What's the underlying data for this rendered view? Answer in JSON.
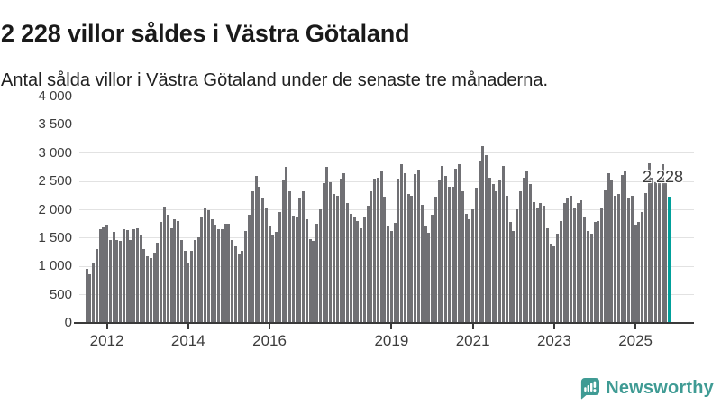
{
  "header": {
    "title": "2 228 villor såldes i Västra Götaland",
    "subtitle": "Antal sålda villor i Västra Götaland under de senaste tre månaderna."
  },
  "chart_data": {
    "type": "bar",
    "title": "2 228 villor såldes i Västra Götaland",
    "xlabel": "",
    "ylabel": "",
    "ylim": [
      0,
      4000
    ],
    "grid": "horizontal",
    "y_ticks": [
      0,
      500,
      1000,
      1500,
      2000,
      2500,
      3000,
      3500,
      4000
    ],
    "y_tick_labels": [
      "0",
      "500",
      "1 000",
      "1 500",
      "2 000",
      "2 500",
      "3 000",
      "3 500",
      "4 000"
    ],
    "x_tick_labels": [
      "2012",
      "2014",
      "2016",
      "2019",
      "2021",
      "2023",
      "2025"
    ],
    "x_tick_month_indices": [
      6,
      30,
      54,
      90,
      114,
      138,
      162
    ],
    "period_start": "2011-07",
    "period_end": "2025-11",
    "values": [
      950,
      860,
      1060,
      1310,
      1650,
      1690,
      1730,
      1460,
      1610,
      1460,
      1450,
      1650,
      1640,
      1470,
      1660,
      1670,
      1540,
      1310,
      1180,
      1150,
      1250,
      1420,
      1780,
      2050,
      1910,
      1670,
      1840,
      1800,
      1470,
      1270,
      1070,
      1280,
      1470,
      1520,
      1860,
      2040,
      1990,
      1830,
      1730,
      1650,
      1650,
      1750,
      1750,
      1470,
      1360,
      1230,
      1280,
      1620,
      1910,
      2330,
      2600,
      2410,
      2200,
      2040,
      1700,
      1560,
      1610,
      1960,
      2520,
      2760,
      2320,
      1890,
      1870,
      2200,
      2330,
      1840,
      1480,
      1450,
      1750,
      2010,
      2470,
      2760,
      2490,
      2280,
      2250,
      2550,
      2650,
      2120,
      1930,
      1860,
      1800,
      1670,
      1880,
      2070,
      2330,
      2550,
      2570,
      2690,
      2230,
      1720,
      1620,
      1770,
      2550,
      2810,
      2650,
      2280,
      2250,
      2630,
      2710,
      2090,
      1720,
      1590,
      1910,
      2230,
      2520,
      2780,
      2600,
      2410,
      2410,
      2730,
      2810,
      2330,
      1930,
      1830,
      2010,
      2390,
      2860,
      3130,
      2970,
      2570,
      2450,
      2330,
      2540,
      2770,
      2250,
      1780,
      1620,
      2010,
      2330,
      2560,
      2690,
      2460,
      2140,
      2040,
      2120,
      2070,
      1670,
      1410,
      1360,
      1570,
      1800,
      2120,
      2220,
      2250,
      2040,
      2120,
      2170,
      1880,
      1620,
      1570,
      1780,
      1800,
      2040,
      2350,
      2640,
      2510,
      2250,
      2280,
      2620,
      2690,
      2200,
      2250,
      1730,
      1780,
      1960,
      2300,
      2820,
      2560,
      2480,
      2510,
      2800,
      2510,
      2228
    ],
    "highlight_index": 172,
    "highlight_value": 2228,
    "annotation": "2 228",
    "bar_color": "#707074",
    "highlight_color": "#00a09b"
  },
  "footer": {
    "brand": "Newsworthy"
  }
}
